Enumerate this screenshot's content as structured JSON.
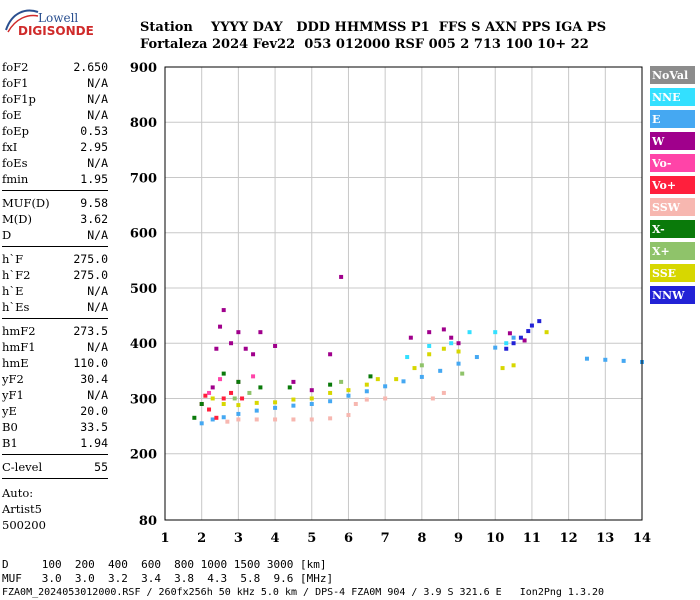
{
  "logo": {
    "line1": "Lowell",
    "line2": "DIGISONDE"
  },
  "header": {
    "row1": "Station    YYYY DAY   DDD HHMMSS P1  FFS S AXN PPS IGA PS",
    "row2": "Fortaleza 2024 Fev22  053 012000 RSF 005 2 713 100 10+ 22"
  },
  "params_group1": [
    {
      "k": "foF2",
      "v": "2.650"
    },
    {
      "k": "foF1",
      "v": "N/A"
    },
    {
      "k": "foF1p",
      "v": "N/A"
    },
    {
      "k": "foE",
      "v": "N/A"
    },
    {
      "k": "foEp",
      "v": "0.53"
    },
    {
      "k": "fxI",
      "v": "2.95"
    },
    {
      "k": "foEs",
      "v": "N/A"
    },
    {
      "k": "fmin",
      "v": "1.95"
    }
  ],
  "params_group2": [
    {
      "k": "MUF(D)",
      "v": "9.58"
    },
    {
      "k": "M(D)",
      "v": "3.62"
    },
    {
      "k": "D",
      "v": "N/A"
    }
  ],
  "params_group3": [
    {
      "k": "h`F",
      "v": "275.0"
    },
    {
      "k": "h`F2",
      "v": "275.0"
    },
    {
      "k": "h`E",
      "v": "N/A"
    },
    {
      "k": "h`Es",
      "v": "N/A"
    }
  ],
  "params_group4": [
    {
      "k": "hmF2",
      "v": "273.5"
    },
    {
      "k": "hmF1",
      "v": "N/A"
    },
    {
      "k": "hmE",
      "v": "110.0"
    },
    {
      "k": "yF2",
      "v": "30.4"
    },
    {
      "k": "yF1",
      "v": "N/A"
    },
    {
      "k": "yE",
      "v": "20.0"
    },
    {
      "k": "B0",
      "v": "33.5"
    },
    {
      "k": "B1",
      "v": "1.94"
    }
  ],
  "c_level": {
    "k": "C-level",
    "v": "55"
  },
  "auto": {
    "line1": "Auto:",
    "line2": "Artist5",
    "line3": "500200"
  },
  "footer": {
    "d_row": "D     100  200  400  600  800 1000 1500 3000 [km]",
    "muf_row": "MUF   3.0  3.0  3.2  3.4  3.8  4.3  5.8  9.6 [MHz]",
    "file_row": "FZA0M_2024053012000.RSF / 260fx256h 50 kHz 5.0 km / DPS-4 FZA0M 904 / 3.9 S 321.6 E   Ion2Png 1.3.20"
  },
  "legend": [
    {
      "label": "NoVal",
      "color": "#8c8c8c"
    },
    {
      "label": "NNE",
      "color": "#33e0ff"
    },
    {
      "label": "E",
      "color": "#45a8f2"
    },
    {
      "label": "W",
      "color": "#a0008c"
    },
    {
      "label": "Vo-",
      "color": "#ff44a8"
    },
    {
      "label": "Vo+",
      "color": "#ff1f3c"
    },
    {
      "label": "SSW",
      "color": "#f7b7b0"
    },
    {
      "label": "X-",
      "color": "#0a7a0a"
    },
    {
      "label": "X+",
      "color": "#8fc36a"
    },
    {
      "label": "SSE",
      "color": "#d7d700"
    },
    {
      "label": "NNW",
      "color": "#2222d6"
    }
  ],
  "chart_data": {
    "type": "scatter",
    "xlim": [
      1,
      14
    ],
    "ylim": [
      80,
      900
    ],
    "xticks": [
      1,
      2,
      3,
      4,
      5,
      6,
      7,
      8,
      9,
      10,
      11,
      12,
      13,
      14
    ],
    "yticks": [
      80,
      200,
      300,
      400,
      500,
      600,
      700,
      800,
      900
    ],
    "grid": true,
    "legend_position": "right",
    "series": [
      {
        "name": "E",
        "color": "#45a8f2",
        "points": [
          [
            2.0,
            255
          ],
          [
            2.3,
            262
          ],
          [
            2.6,
            266
          ],
          [
            3.0,
            272
          ],
          [
            3.5,
            278
          ],
          [
            4.0,
            283
          ],
          [
            4.5,
            287
          ],
          [
            5.0,
            290
          ],
          [
            5.5,
            295
          ],
          [
            6.0,
            305
          ],
          [
            6.5,
            313
          ],
          [
            7.0,
            322
          ],
          [
            7.5,
            331
          ],
          [
            8.0,
            339
          ],
          [
            8.5,
            350
          ],
          [
            9.0,
            363
          ],
          [
            9.5,
            375
          ],
          [
            10.0,
            392
          ],
          [
            10.5,
            410
          ],
          [
            12.5,
            372
          ],
          [
            13.0,
            370
          ],
          [
            13.5,
            368
          ],
          [
            14.0,
            366
          ]
        ]
      },
      {
        "name": "SSE",
        "color": "#d7d700",
        "points": [
          [
            2.3,
            300
          ],
          [
            2.6,
            290
          ],
          [
            3.0,
            288
          ],
          [
            3.5,
            292
          ],
          [
            4.0,
            293
          ],
          [
            4.5,
            298
          ],
          [
            5.0,
            300
          ],
          [
            5.5,
            310
          ],
          [
            6.0,
            315
          ],
          [
            6.5,
            325
          ],
          [
            6.8,
            335
          ],
          [
            7.3,
            335
          ],
          [
            7.8,
            355
          ],
          [
            8.2,
            380
          ],
          [
            8.6,
            390
          ],
          [
            9.0,
            385
          ],
          [
            10.2,
            355
          ],
          [
            10.5,
            360
          ],
          [
            11.4,
            420
          ]
        ]
      },
      {
        "name": "SSW",
        "color": "#f7b7b0",
        "points": [
          [
            2.7,
            258
          ],
          [
            3.0,
            262
          ],
          [
            3.5,
            262
          ],
          [
            4.0,
            262
          ],
          [
            4.5,
            262
          ],
          [
            5.0,
            262
          ],
          [
            5.5,
            264
          ],
          [
            6.0,
            270
          ],
          [
            6.2,
            290
          ],
          [
            6.5,
            298
          ],
          [
            7.0,
            300
          ],
          [
            8.3,
            300
          ],
          [
            8.6,
            310
          ]
        ]
      },
      {
        "name": "W",
        "color": "#a0008c",
        "points": [
          [
            2.3,
            320
          ],
          [
            2.4,
            390
          ],
          [
            2.5,
            430
          ],
          [
            2.6,
            460
          ],
          [
            2.8,
            400
          ],
          [
            3.0,
            420
          ],
          [
            3.2,
            390
          ],
          [
            3.4,
            380
          ],
          [
            3.6,
            420
          ],
          [
            4.0,
            395
          ],
          [
            4.5,
            330
          ],
          [
            5.0,
            315
          ],
          [
            5.5,
            380
          ],
          [
            5.8,
            520
          ],
          [
            7.7,
            410
          ],
          [
            8.2,
            420
          ],
          [
            8.6,
            425
          ],
          [
            8.8,
            410
          ],
          [
            9.0,
            400
          ],
          [
            10.4,
            418
          ],
          [
            10.8,
            405
          ]
        ]
      },
      {
        "name": "Vo+",
        "color": "#ff1f3c",
        "points": [
          [
            2.0,
            290
          ],
          [
            2.1,
            305
          ],
          [
            2.2,
            280
          ],
          [
            2.4,
            265
          ],
          [
            2.6,
            300
          ],
          [
            2.8,
            310
          ],
          [
            3.1,
            300
          ]
        ]
      },
      {
        "name": "Vo-",
        "color": "#ff44a8",
        "points": [
          [
            2.2,
            310
          ],
          [
            2.5,
            335
          ],
          [
            3.0,
            330
          ],
          [
            3.4,
            340
          ]
        ]
      },
      {
        "name": "X-",
        "color": "#0a7a0a",
        "points": [
          [
            1.8,
            265
          ],
          [
            2.0,
            290
          ],
          [
            2.6,
            345
          ],
          [
            3.0,
            330
          ],
          [
            3.6,
            320
          ],
          [
            4.4,
            320
          ],
          [
            5.5,
            325
          ],
          [
            6.6,
            340
          ]
        ]
      },
      {
        "name": "X+",
        "color": "#8fc36a",
        "points": [
          [
            2.9,
            300
          ],
          [
            3.3,
            310
          ],
          [
            5.8,
            330
          ],
          [
            8.0,
            360
          ],
          [
            9.1,
            345
          ]
        ]
      },
      {
        "name": "NNE",
        "color": "#33e0ff",
        "points": [
          [
            7.6,
            375
          ],
          [
            8.2,
            395
          ],
          [
            8.8,
            400
          ],
          [
            9.3,
            420
          ],
          [
            10.0,
            420
          ],
          [
            10.3,
            400
          ]
        ]
      },
      {
        "name": "NNW",
        "color": "#2222d6",
        "points": [
          [
            10.3,
            390
          ],
          [
            10.5,
            400
          ],
          [
            10.7,
            410
          ],
          [
            10.9,
            422
          ],
          [
            11.0,
            432
          ],
          [
            11.2,
            440
          ]
        ]
      }
    ]
  }
}
